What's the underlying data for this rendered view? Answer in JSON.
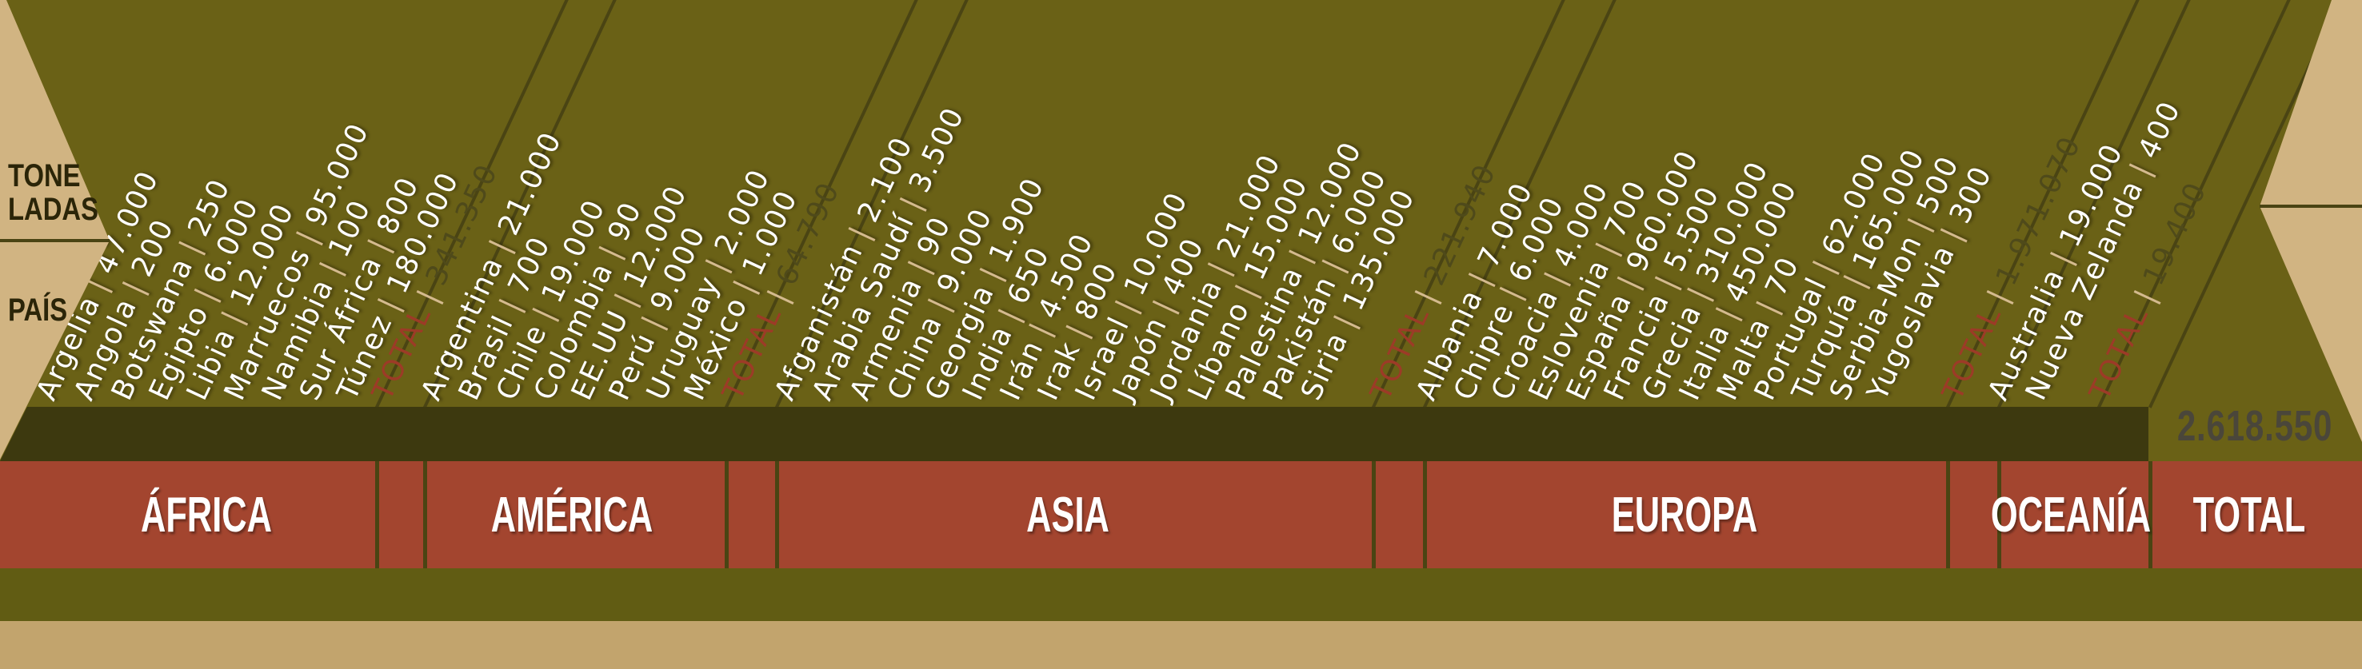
{
  "axis": {
    "tonnes_line1": "TONE",
    "tonnes_line2": "LADAS",
    "pais": "PAÍS"
  },
  "labels": {
    "total_row": "TOTAL",
    "total_column": "TOTAL",
    "grand_total": "2.618.550"
  },
  "continents": [
    {
      "name": "ÁFRICA",
      "total": "341.350",
      "countries": [
        {
          "name": "Argelia",
          "value": "47.000"
        },
        {
          "name": "Angola",
          "value": "200"
        },
        {
          "name": "Botswana",
          "value": "250"
        },
        {
          "name": "Egipto",
          "value": "6.000"
        },
        {
          "name": "Libia",
          "value": "12.000"
        },
        {
          "name": "Marruecos",
          "value": "95.000"
        },
        {
          "name": "Namibia",
          "value": "100"
        },
        {
          "name": "Sur África",
          "value": "800"
        },
        {
          "name": "Túnez",
          "value": "180.000"
        }
      ]
    },
    {
      "name": "AMÉRICA",
      "total": "64.790",
      "countries": [
        {
          "name": "Argentina",
          "value": "21.000"
        },
        {
          "name": "Brasil",
          "value": "700"
        },
        {
          "name": "Chile",
          "value": "19.000"
        },
        {
          "name": "Colombia",
          "value": "90"
        },
        {
          "name": "EE.UU",
          "value": "12.000"
        },
        {
          "name": "Perú",
          "value": "9.000"
        },
        {
          "name": "Uruguay",
          "value": "2.000"
        },
        {
          "name": "México",
          "value": "1.000"
        }
      ]
    },
    {
      "name": "ASIA",
      "total": "221.940",
      "countries": [
        {
          "name": "Afganistán",
          "value": "2.100"
        },
        {
          "name": "Arabia Saudí",
          "value": "3.500"
        },
        {
          "name": "Armenia",
          "value": "90"
        },
        {
          "name": "China",
          "value": "9.000"
        },
        {
          "name": "Georgia",
          "value": "1.900"
        },
        {
          "name": "India",
          "value": "650"
        },
        {
          "name": "Irán",
          "value": "4.500"
        },
        {
          "name": "Irak",
          "value": "800"
        },
        {
          "name": "Israel",
          "value": "10.000"
        },
        {
          "name": "Japón",
          "value": "400"
        },
        {
          "name": "Jordania",
          "value": "21.000"
        },
        {
          "name": "Líbano",
          "value": "15.000"
        },
        {
          "name": "Palestina",
          "value": "12.000"
        },
        {
          "name": "Pakistán",
          "value": "6.000"
        },
        {
          "name": "Siria",
          "value": "135.000"
        }
      ]
    },
    {
      "name": "EUROPA",
      "total": "1.971.070",
      "countries": [
        {
          "name": "Albania",
          "value": "7.000"
        },
        {
          "name": "Chipre",
          "value": "6.000"
        },
        {
          "name": "Croacia",
          "value": "4.000"
        },
        {
          "name": "Eslovenia",
          "value": "700"
        },
        {
          "name": "España",
          "value": "960.000"
        },
        {
          "name": "Francia",
          "value": "5.500"
        },
        {
          "name": "Grecia",
          "value": "310.000"
        },
        {
          "name": "Italia",
          "value": "450.000"
        },
        {
          "name": "Malta",
          "value": "70"
        },
        {
          "name": "Portugal",
          "value": "62.000"
        },
        {
          "name": "Turquía",
          "value": "165.000"
        },
        {
          "name": "Serbia-Mon",
          "value": "500"
        },
        {
          "name": "Yugoslavia",
          "value": "300"
        }
      ]
    },
    {
      "name": "OCEANÍA",
      "total": "19.400",
      "countries": [
        {
          "name": "Australia",
          "value": "19.000"
        },
        {
          "name": "Nueva Zelanda",
          "value": "400"
        }
      ]
    }
  ],
  "colors": {
    "bg": "#6A6116",
    "dark": "#3D390F",
    "red": "#A3452F",
    "olive2": "#615C13",
    "tan1": "#D1B482",
    "tan2": "#C2A46D",
    "line": "#4A4413",
    "pipe": "#D4BA8E",
    "totalword": "#9C3B27",
    "totalval": "#4F4A1A",
    "grand": "#4A463A",
    "axistext": "#2B2508",
    "text": "#FFFFFF"
  },
  "chart_data": {
    "type": "table",
    "unit_label": "TONELADAS",
    "row_label": "PAÍS",
    "legend_position": "bottom-band",
    "grand_total": 2618550,
    "groups": [
      {
        "continent": "ÁFRICA",
        "total": 341350,
        "countries": [
          [
            "Argelia",
            47000
          ],
          [
            "Angola",
            200
          ],
          [
            "Botswana",
            250
          ],
          [
            "Egipto",
            6000
          ],
          [
            "Libia",
            12000
          ],
          [
            "Marruecos",
            95000
          ],
          [
            "Namibia",
            100
          ],
          [
            "Sur África",
            800
          ],
          [
            "Túnez",
            180000
          ]
        ]
      },
      {
        "continent": "AMÉRICA",
        "total": 64790,
        "countries": [
          [
            "Argentina",
            21000
          ],
          [
            "Brasil",
            700
          ],
          [
            "Chile",
            19000
          ],
          [
            "Colombia",
            90
          ],
          [
            "EE.UU",
            12000
          ],
          [
            "Perú",
            9000
          ],
          [
            "Uruguay",
            2000
          ],
          [
            "México",
            1000
          ]
        ]
      },
      {
        "continent": "ASIA",
        "total": 221940,
        "countries": [
          [
            "Afganistán",
            2100
          ],
          [
            "Arabia Saudí",
            3500
          ],
          [
            "Armenia",
            90
          ],
          [
            "China",
            9000
          ],
          [
            "Georgia",
            1900
          ],
          [
            "India",
            650
          ],
          [
            "Irán",
            4500
          ],
          [
            "Irak",
            800
          ],
          [
            "Israel",
            10000
          ],
          [
            "Japón",
            400
          ],
          [
            "Jordania",
            21000
          ],
          [
            "Líbano",
            15000
          ],
          [
            "Palestina",
            12000
          ],
          [
            "Pakistán",
            6000
          ],
          [
            "Siria",
            135000
          ]
        ]
      },
      {
        "continent": "EUROPA",
        "total": 1971070,
        "countries": [
          [
            "Albania",
            7000
          ],
          [
            "Chipre",
            6000
          ],
          [
            "Croacia",
            4000
          ],
          [
            "Eslovenia",
            700
          ],
          [
            "España",
            960000
          ],
          [
            "Francia",
            5500
          ],
          [
            "Grecia",
            310000
          ],
          [
            "Italia",
            450000
          ],
          [
            "Malta",
            70
          ],
          [
            "Portugal",
            62000
          ],
          [
            "Turquía",
            165000
          ],
          [
            "Serbia-Mon",
            500
          ],
          [
            "Yugoslavia",
            300
          ]
        ]
      },
      {
        "continent": "OCEANÍA",
        "total": 19400,
        "countries": [
          [
            "Australia",
            19000
          ],
          [
            "Nueva Zelanda",
            400
          ]
        ]
      }
    ]
  }
}
